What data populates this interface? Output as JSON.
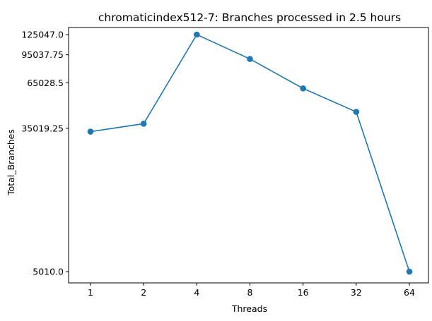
{
  "chart_data": {
    "type": "line",
    "title": "chromaticindex512-7: Branches processed in 2.5 hours",
    "xlabel": "Threads",
    "ylabel": "Total_Branches",
    "categories": [
      "1",
      "2",
      "4",
      "8",
      "16",
      "32",
      "64"
    ],
    "series": [
      {
        "values": [
          33500,
          37300,
          125047,
          89800,
          60200,
          43800,
          5010
        ],
        "color": "#1f77b4"
      }
    ],
    "y_scale": "log",
    "y_ticks": [
      5010.0,
      35019.25,
      65028.5,
      95037.75,
      125047.0
    ],
    "y_tick_labels": [
      "5010.0",
      "35019.25",
      "65028.5",
      "95037.75",
      "125047.0"
    ],
    "grid": false,
    "marker": "circle"
  }
}
